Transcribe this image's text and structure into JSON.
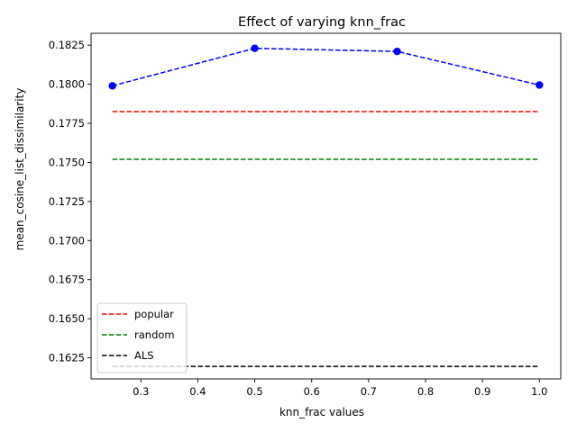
{
  "chart_data": {
    "type": "line",
    "title": "Effect of varying knn_frac",
    "xlabel": "knn_frac values",
    "ylabel": "mean_cosine_list_dissimilarity",
    "xlim": [
      0.2125,
      1.0375
    ],
    "ylim": [
      0.16115,
      0.18326
    ],
    "xticks": [
      0.3,
      0.4,
      0.5,
      0.6,
      0.7,
      0.8,
      0.9,
      1.0
    ],
    "xtick_labels": [
      "0.3",
      "0.4",
      "0.5",
      "0.6",
      "0.7",
      "0.8",
      "0.9",
      "1.0"
    ],
    "yticks": [
      0.1625,
      0.165,
      0.1675,
      0.17,
      0.1725,
      0.175,
      0.1775,
      0.18,
      0.1825
    ],
    "ytick_labels": [
      "0.1625",
      "0.1650",
      "0.1675",
      "0.1700",
      "0.1725",
      "0.1750",
      "0.1775",
      "0.1800",
      "0.1825"
    ],
    "grid": false,
    "legend_position": "lower-left",
    "series": [
      {
        "x": [
          0.25,
          0.5,
          0.75,
          1.0
        ],
        "values": [
          0.1799,
          0.1823,
          0.1821,
          0.17995
        ],
        "color": "#0000ff",
        "style": "dashed",
        "marker": "circle",
        "legend": false
      },
      {
        "name": "popular",
        "x": [
          0.25,
          1.0
        ],
        "values": [
          0.17825,
          0.17825
        ],
        "color": "#ff0000",
        "style": "dashed",
        "legend": true
      },
      {
        "name": "random",
        "x": [
          0.25,
          1.0
        ],
        "values": [
          0.1752,
          0.1752
        ],
        "color": "#008000",
        "style": "dashed",
        "legend": true
      },
      {
        "name": "ALS",
        "x": [
          0.25,
          1.0
        ],
        "values": [
          0.16195,
          0.16195
        ],
        "color": "#000000",
        "style": "dashed",
        "legend": true
      }
    ]
  }
}
